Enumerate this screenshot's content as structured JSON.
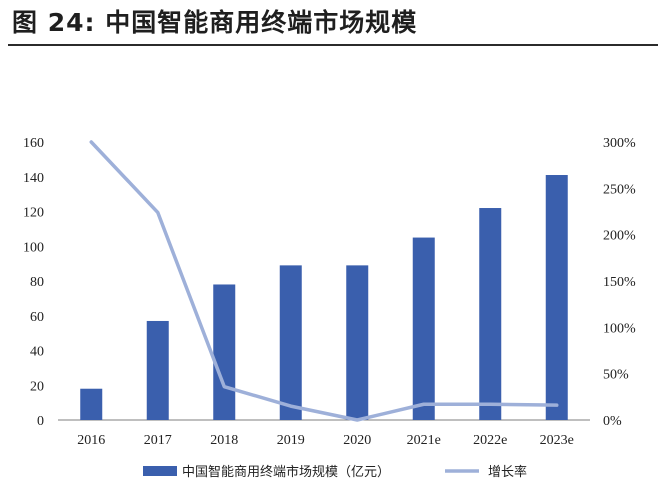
{
  "figure": {
    "title": "图 24:  中国智能商用终端市场规模"
  },
  "chart_data": {
    "type": "bar",
    "categories": [
      "2016",
      "2017",
      "2018",
      "2019",
      "2020",
      "2021e",
      "2022e",
      "2023e"
    ],
    "series": [
      {
        "name": "中国智能商用终端市场规模（亿元）",
        "type": "bar",
        "axis": "left",
        "color": "#3a5fad",
        "values": [
          18,
          57,
          78,
          89,
          89,
          105,
          122,
          141
        ]
      },
      {
        "name": "增长率",
        "type": "line",
        "axis": "right",
        "color": "#9eb0d9",
        "values": [
          300,
          224,
          36,
          15,
          0,
          17,
          17,
          16
        ]
      }
    ],
    "y_left": {
      "min": 0,
      "max": 160,
      "ticks": [
        "0",
        "20",
        "40",
        "60",
        "80",
        "100",
        "120",
        "140",
        "160"
      ]
    },
    "y_right": {
      "min": 0,
      "max": 300,
      "ticks": [
        "0%",
        "50%",
        "100%",
        "150%",
        "200%",
        "250%",
        "300%"
      ]
    },
    "grid": false,
    "legend_position": "bottom"
  },
  "colors": {
    "bar": "#3a5fad",
    "line": "#9eb0d9"
  }
}
